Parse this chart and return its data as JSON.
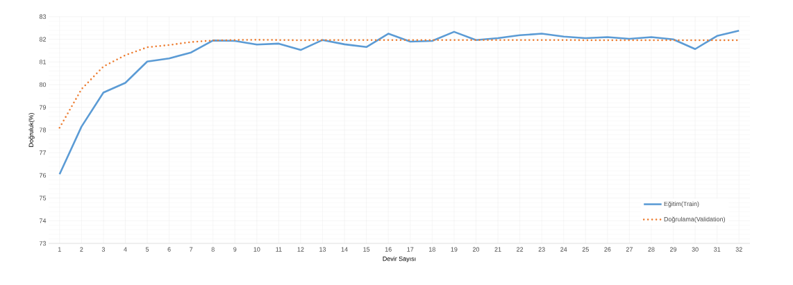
{
  "chart_data": {
    "type": "line",
    "xlabel": "Devir Sayısı",
    "ylabel": "Doğruluk(%)",
    "categories": [
      "1",
      "2",
      "3",
      "4",
      "5",
      "6",
      "7",
      "8",
      "9",
      "10",
      "11",
      "12",
      "13",
      "14",
      "15",
      "16",
      "17",
      "18",
      "19",
      "20",
      "21",
      "22",
      "23",
      "24",
      "25",
      "26",
      "27",
      "28",
      "29",
      "30",
      "31",
      "32"
    ],
    "series": [
      {
        "name": "Eğitim(Train)",
        "color": "#5b9bd5",
        "line_style": "solid",
        "values": [
          76.05,
          78.15,
          79.65,
          80.08,
          81.02,
          81.16,
          81.42,
          81.95,
          81.93,
          81.77,
          81.81,
          81.53,
          81.97,
          81.78,
          81.66,
          82.25,
          81.9,
          81.93,
          82.33,
          81.97,
          82.05,
          82.18,
          82.25,
          82.12,
          82.05,
          82.1,
          82.02,
          82.1,
          82.0,
          81.57,
          82.15,
          82.38
        ]
      },
      {
        "name": "Doğrulama(Validation)",
        "color": "#ed7d31",
        "line_style": "dotted",
        "values": [
          78.1,
          79.8,
          80.8,
          81.3,
          81.65,
          81.75,
          81.88,
          81.95,
          81.97,
          81.98,
          81.97,
          81.96,
          81.97,
          81.97,
          81.97,
          81.97,
          81.97,
          81.97,
          81.97,
          81.97,
          81.97,
          81.97,
          81.97,
          81.97,
          81.96,
          81.96,
          81.96,
          81.96,
          81.96,
          81.96,
          81.96,
          81.96
        ]
      }
    ],
    "ylim": [
      73,
      83
    ],
    "yticks": [
      73,
      74,
      75,
      76,
      77,
      78,
      79,
      80,
      81,
      82,
      83
    ],
    "grid": true,
    "legend": "bottom right",
    "marker": "none"
  }
}
